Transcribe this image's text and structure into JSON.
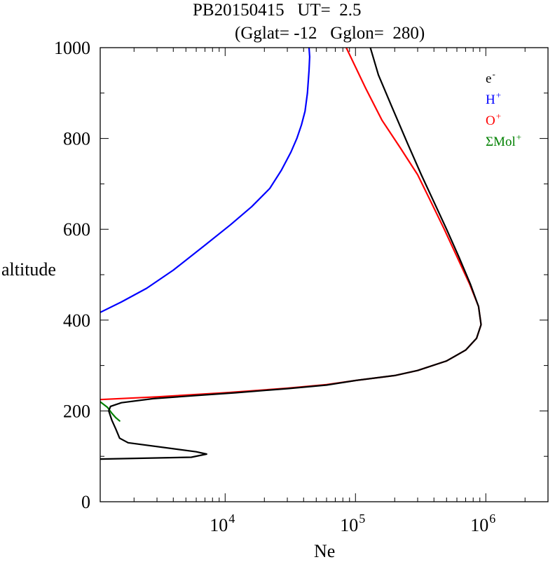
{
  "chart_data": {
    "type": "line",
    "title_line1": "PB20150415   UT=  2.5",
    "title_line2": "(Gglat= -12   Gglon=  280)",
    "xlabel": "Ne",
    "ylabel": "altitude",
    "x_scale": "log",
    "xlim": [
      1100,
      3000000
    ],
    "ylim": [
      0,
      1000
    ],
    "y_ticks": [
      0,
      200,
      400,
      600,
      800,
      1000
    ],
    "x_tick_labels": [
      {
        "base": "10",
        "exp": "4",
        "value": 10000
      },
      {
        "base": "10",
        "exp": "5",
        "value": 100000
      },
      {
        "base": "10",
        "exp": "6",
        "value": 1000000
      }
    ],
    "legend_position": "top-right",
    "legend": [
      {
        "base": "e",
        "sup": "-",
        "color": "#000000"
      },
      {
        "base": "H",
        "sup": "+",
        "color": "#0000ff"
      },
      {
        "base": "O",
        "sup": "+",
        "color": "#ff0000"
      },
      {
        "base": "ΣMol",
        "sup": "+",
        "color": "#008000"
      }
    ],
    "series": [
      {
        "color": "#0000ff",
        "points": [
          [
            1100,
            417
          ],
          [
            1600,
            440
          ],
          [
            2500,
            470
          ],
          [
            4000,
            510
          ],
          [
            7000,
            565
          ],
          [
            11000,
            610
          ],
          [
            16000,
            650
          ],
          [
            22000,
            690
          ],
          [
            27000,
            730
          ],
          [
            32000,
            770
          ],
          [
            35500,
            800
          ],
          [
            38500,
            830
          ],
          [
            41000,
            860
          ],
          [
            42800,
            900
          ],
          [
            44000,
            950
          ],
          [
            44500,
            980
          ],
          [
            44000,
            1000
          ]
        ]
      },
      {
        "color": "#008000",
        "points": [
          [
            1100,
            220
          ],
          [
            1250,
            208
          ],
          [
            1350,
            195
          ],
          [
            1450,
            185
          ],
          [
            1550,
            178
          ]
        ]
      },
      {
        "color": "#ff0000",
        "points": [
          [
            1100,
            225
          ],
          [
            3000,
            231
          ],
          [
            10000,
            240
          ],
          [
            30000,
            250
          ],
          [
            60000,
            258
          ],
          [
            100000,
            267
          ],
          [
            200000,
            278
          ],
          [
            300000,
            289
          ],
          [
            500000,
            310
          ],
          [
            700000,
            334
          ],
          [
            850000,
            360
          ],
          [
            920000,
            390
          ],
          [
            880000,
            430
          ],
          [
            750000,
            480
          ],
          [
            600000,
            540
          ],
          [
            480000,
            600
          ],
          [
            380000,
            660
          ],
          [
            300000,
            720
          ],
          [
            220000,
            780
          ],
          [
            160000,
            840
          ],
          [
            120000,
            910
          ],
          [
            85000,
            1000
          ]
        ]
      },
      {
        "color": "#000000",
        "points": [
          [
            1100,
            94
          ],
          [
            5500,
            98
          ],
          [
            7200,
            105
          ],
          [
            6000,
            110
          ],
          [
            1800,
            130
          ],
          [
            1550,
            140
          ],
          [
            1450,
            160
          ],
          [
            1350,
            180
          ],
          [
            1280,
            200
          ],
          [
            1320,
            210
          ],
          [
            1600,
            218
          ],
          [
            2800,
            227
          ],
          [
            6000,
            234
          ],
          [
            12000,
            240
          ],
          [
            30000,
            249
          ],
          [
            60000,
            257
          ],
          [
            100000,
            267
          ],
          [
            200000,
            278
          ],
          [
            300000,
            289
          ],
          [
            500000,
            310
          ],
          [
            700000,
            334
          ],
          [
            850000,
            360
          ],
          [
            920000,
            390
          ],
          [
            880000,
            430
          ],
          [
            760000,
            480
          ],
          [
            620000,
            540
          ],
          [
            500000,
            600
          ],
          [
            400000,
            660
          ],
          [
            320000,
            720
          ],
          [
            250000,
            790
          ],
          [
            190000,
            870
          ],
          [
            150000,
            940
          ],
          [
            130000,
            1000
          ]
        ]
      }
    ]
  }
}
